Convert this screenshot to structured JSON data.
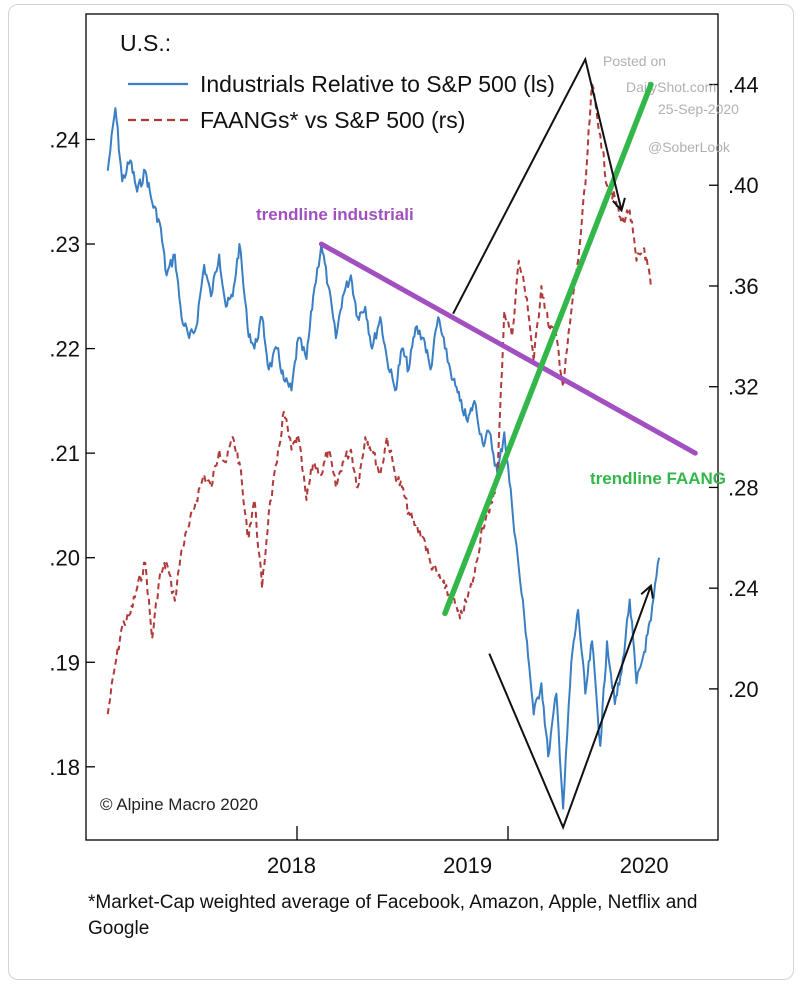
{
  "chart_data": {
    "type": "line",
    "title": "U.S.:",
    "x_ticks": [
      "2018",
      "2019",
      "2020"
    ],
    "y_left": {
      "ticks": [
        ".18",
        ".19",
        ".20",
        ".21",
        ".22",
        ".23",
        ".24"
      ],
      "range": [
        0.173,
        0.252
      ]
    },
    "y_right": {
      "ticks": [
        ".20",
        ".24",
        ".28",
        ".32",
        ".36",
        ".40",
        ".44"
      ],
      "range": [
        0.14,
        0.468
      ]
    },
    "series": [
      {
        "name": "Industrials Relative to S&P 500 (ls)",
        "axis": "left",
        "color": "#3a7fc4",
        "style": "solid",
        "points": [
          [
            "2017-06-15",
            0.237
          ],
          [
            "2017-07-01",
            0.243
          ],
          [
            "2017-07-15",
            0.236
          ],
          [
            "2017-08-01",
            0.238
          ],
          [
            "2017-08-15",
            0.235
          ],
          [
            "2017-09-01",
            0.237
          ],
          [
            "2017-09-15",
            0.234
          ],
          [
            "2017-10-01",
            0.232
          ],
          [
            "2017-10-15",
            0.227
          ],
          [
            "2017-11-01",
            0.229
          ],
          [
            "2017-11-15",
            0.223
          ],
          [
            "2017-12-01",
            0.221
          ],
          [
            "2017-12-15",
            0.222
          ],
          [
            "2018-01-01",
            0.228
          ],
          [
            "2018-01-15",
            0.225
          ],
          [
            "2018-02-01",
            0.229
          ],
          [
            "2018-02-15",
            0.224
          ],
          [
            "2018-03-01",
            0.225
          ],
          [
            "2018-03-15",
            0.23
          ],
          [
            "2018-04-01",
            0.222
          ],
          [
            "2018-04-15",
            0.22
          ],
          [
            "2018-05-01",
            0.223
          ],
          [
            "2018-05-15",
            0.218
          ],
          [
            "2018-06-01",
            0.22
          ],
          [
            "2018-06-15",
            0.217
          ],
          [
            "2018-07-01",
            0.216
          ],
          [
            "2018-07-15",
            0.221
          ],
          [
            "2018-08-01",
            0.219
          ],
          [
            "2018-08-15",
            0.225
          ],
          [
            "2018-09-01",
            0.23
          ],
          [
            "2018-09-15",
            0.226
          ],
          [
            "2018-10-01",
            0.221
          ],
          [
            "2018-10-15",
            0.225
          ],
          [
            "2018-11-01",
            0.227
          ],
          [
            "2018-11-15",
            0.223
          ],
          [
            "2018-12-01",
            0.224
          ],
          [
            "2018-12-15",
            0.22
          ],
          [
            "2019-01-01",
            0.223
          ],
          [
            "2019-01-15",
            0.219
          ],
          [
            "2019-02-01",
            0.216
          ],
          [
            "2019-02-15",
            0.22
          ],
          [
            "2019-03-01",
            0.218
          ],
          [
            "2019-03-15",
            0.222
          ],
          [
            "2019-04-01",
            0.221
          ],
          [
            "2019-04-15",
            0.218
          ],
          [
            "2019-05-01",
            0.223
          ],
          [
            "2019-05-15",
            0.22
          ],
          [
            "2019-06-01",
            0.217
          ],
          [
            "2019-06-15",
            0.215
          ],
          [
            "2019-07-01",
            0.213
          ],
          [
            "2019-07-15",
            0.215
          ],
          [
            "2019-08-01",
            0.211
          ],
          [
            "2019-08-15",
            0.212
          ],
          [
            "2019-09-01",
            0.208
          ],
          [
            "2019-09-15",
            0.212
          ],
          [
            "2019-10-01",
            0.205
          ],
          [
            "2019-10-15",
            0.199
          ],
          [
            "2019-11-01",
            0.192
          ],
          [
            "2019-11-15",
            0.185
          ],
          [
            "2019-12-01",
            0.188
          ],
          [
            "2019-12-15",
            0.181
          ],
          [
            "2020-01-01",
            0.187
          ],
          [
            "2020-01-15",
            0.176
          ],
          [
            "2020-02-01",
            0.19
          ],
          [
            "2020-02-15",
            0.195
          ],
          [
            "2020-03-01",
            0.187
          ],
          [
            "2020-03-15",
            0.192
          ],
          [
            "2020-04-01",
            0.182
          ],
          [
            "2020-04-15",
            0.192
          ],
          [
            "2020-05-01",
            0.186
          ],
          [
            "2020-05-15",
            0.189
          ],
          [
            "2020-06-01",
            0.196
          ],
          [
            "2020-06-15",
            0.188
          ],
          [
            "2020-07-01",
            0.191
          ],
          [
            "2020-07-15",
            0.194
          ],
          [
            "2020-08-01",
            0.2
          ]
        ]
      },
      {
        "name": "FAANGs* vs S&P 500 (rs)",
        "axis": "right",
        "color": "#b03a3a",
        "style": "dashed",
        "points": [
          [
            "2017-06-15",
            0.19
          ],
          [
            "2017-07-01",
            0.21
          ],
          [
            "2017-07-15",
            0.225
          ],
          [
            "2017-08-01",
            0.23
          ],
          [
            "2017-08-15",
            0.24
          ],
          [
            "2017-09-01",
            0.25
          ],
          [
            "2017-09-15",
            0.22
          ],
          [
            "2017-10-01",
            0.245
          ],
          [
            "2017-10-15",
            0.25
          ],
          [
            "2017-11-01",
            0.235
          ],
          [
            "2017-11-15",
            0.255
          ],
          [
            "2017-12-01",
            0.265
          ],
          [
            "2017-12-15",
            0.275
          ],
          [
            "2018-01-01",
            0.285
          ],
          [
            "2018-01-15",
            0.28
          ],
          [
            "2018-02-01",
            0.295
          ],
          [
            "2018-02-15",
            0.29
          ],
          [
            "2018-03-01",
            0.3
          ],
          [
            "2018-03-15",
            0.29
          ],
          [
            "2018-04-01",
            0.26
          ],
          [
            "2018-04-15",
            0.275
          ],
          [
            "2018-05-01",
            0.24
          ],
          [
            "2018-05-15",
            0.27
          ],
          [
            "2018-06-01",
            0.29
          ],
          [
            "2018-06-15",
            0.31
          ],
          [
            "2018-07-01",
            0.295
          ],
          [
            "2018-07-15",
            0.3
          ],
          [
            "2018-08-01",
            0.275
          ],
          [
            "2018-08-15",
            0.29
          ],
          [
            "2018-09-01",
            0.285
          ],
          [
            "2018-09-15",
            0.295
          ],
          [
            "2018-10-01",
            0.28
          ],
          [
            "2018-10-15",
            0.29
          ],
          [
            "2018-11-01",
            0.295
          ],
          [
            "2018-11-15",
            0.28
          ],
          [
            "2018-12-01",
            0.3
          ],
          [
            "2018-12-15",
            0.295
          ],
          [
            "2019-01-01",
            0.285
          ],
          [
            "2019-01-15",
            0.3
          ],
          [
            "2019-02-01",
            0.285
          ],
          [
            "2019-02-15",
            0.28
          ],
          [
            "2019-03-01",
            0.27
          ],
          [
            "2019-03-15",
            0.265
          ],
          [
            "2019-04-01",
            0.26
          ],
          [
            "2019-04-15",
            0.25
          ],
          [
            "2019-05-01",
            0.245
          ],
          [
            "2019-05-15",
            0.24
          ],
          [
            "2019-06-01",
            0.235
          ],
          [
            "2019-06-15",
            0.228
          ],
          [
            "2019-07-01",
            0.236
          ],
          [
            "2019-07-15",
            0.245
          ],
          [
            "2019-08-01",
            0.265
          ],
          [
            "2019-08-15",
            0.27
          ],
          [
            "2019-09-01",
            0.285
          ],
          [
            "2019-09-15",
            0.35
          ],
          [
            "2019-10-01",
            0.34
          ],
          [
            "2019-10-15",
            0.37
          ],
          [
            "2019-11-01",
            0.355
          ],
          [
            "2019-11-15",
            0.33
          ],
          [
            "2019-12-01",
            0.36
          ],
          [
            "2019-12-15",
            0.345
          ],
          [
            "2020-01-01",
            0.34
          ],
          [
            "2020-01-15",
            0.32
          ],
          [
            "2020-02-01",
            0.35
          ],
          [
            "2020-02-15",
            0.37
          ],
          [
            "2020-03-01",
            0.4
          ],
          [
            "2020-03-15",
            0.44
          ],
          [
            "2020-04-01",
            0.42
          ],
          [
            "2020-04-15",
            0.4
          ],
          [
            "2020-05-01",
            0.395
          ],
          [
            "2020-05-15",
            0.385
          ],
          [
            "2020-06-01",
            0.39
          ],
          [
            "2020-06-15",
            0.37
          ],
          [
            "2020-07-01",
            0.375
          ],
          [
            "2020-07-15",
            0.36
          ]
        ]
      }
    ],
    "trendlines": [
      {
        "name": "trendline industriali",
        "axis": "left",
        "color": "#a24fc0",
        "from": [
          "2018-09-01",
          0.23
        ],
        "to": [
          "2020-10-15",
          0.21
        ]
      },
      {
        "name": "trendline FAANG",
        "axis": "right",
        "color": "#33b64a",
        "from": [
          "2019-05-15",
          0.23
        ],
        "to": [
          "2020-07-15",
          0.44
        ]
      }
    ],
    "annotations": {
      "trendline_industriali": "trendline industriali",
      "trendline_faang": "trendline FAANG"
    },
    "arrows": [
      {
        "name": "peak-arrow",
        "points": [
          [
            "2019-06-01",
            0.349
          ],
          [
            "2020-03-01",
            0.45
          ],
          [
            "2020-05-15",
            0.39
          ]
        ]
      },
      {
        "name": "trough-arrow",
        "points": [
          [
            "2019-08-15",
            0.214
          ],
          [
            "2020-01-15",
            0.145
          ],
          [
            "2020-07-15",
            0.241
          ]
        ]
      }
    ],
    "credit": "© Alpine Macro 2020",
    "watermark": [
      "Posted on",
      "DailyShot.com",
      "25-Sep-2020",
      "@SoberLook"
    ],
    "grid": false,
    "legend_placement": "top-left"
  },
  "footnote": "*Market-Cap weighted average of Facebook, Amazon, Apple, Netflix and Google"
}
